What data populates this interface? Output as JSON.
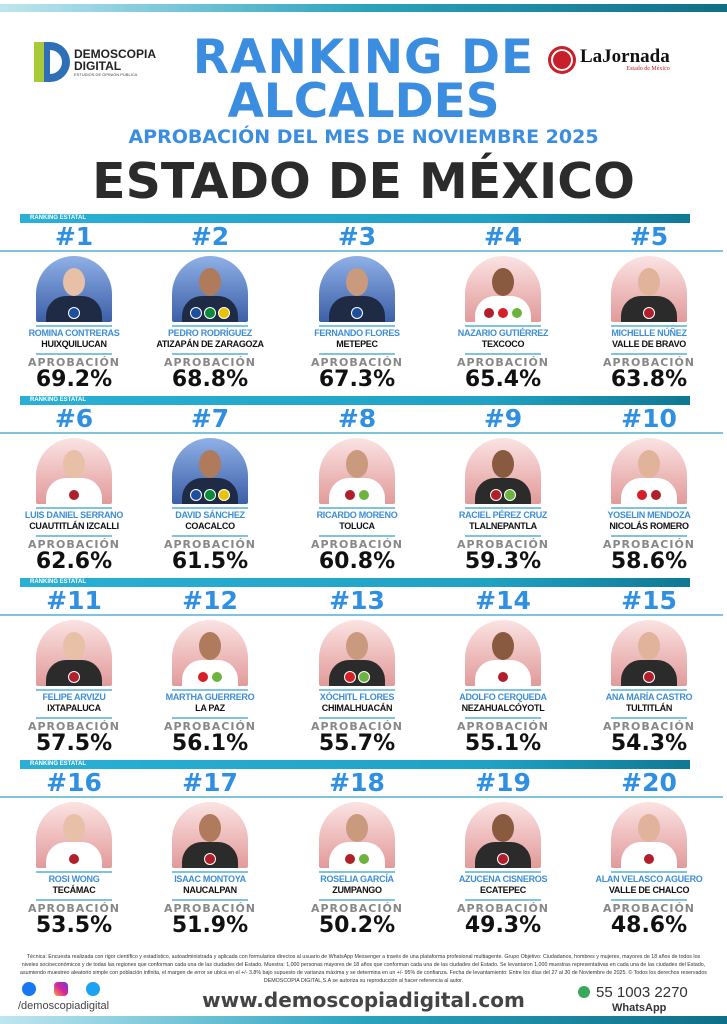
{
  "header": {
    "brand": {
      "line1": "DEMOSCOPIA",
      "line2": "DIGITAL",
      "tagline": "ESTUDIOS DE OPINIÓN PÚBLICA"
    },
    "partner": {
      "name": "LaJornada",
      "subtitle": "Estado de México"
    },
    "title_line1": "RANKING DE",
    "title_line2": "ALCALDES",
    "subtitle": "APROBACIÓN DEL MES DE NOVIEMBRE 2025",
    "state": "ESTADO DE MÉXICO"
  },
  "section_label": "RANKING ESTATAL",
  "approval_label": "APROBACIÓN",
  "colors": {
    "accent": "#3b8de0",
    "bar": "#1fa2c4",
    "pan": "#1d4f9c",
    "pri": "#0a8a3a",
    "morena": "#b0202a",
    "pt": "#d61f26",
    "pvem": "#6cb33f",
    "yellow": "#e8c400"
  },
  "mayors": [
    {
      "rank": "#1",
      "name": "ROMINA CONTRERAS",
      "city": "HUIXQUILUCAN",
      "approval": "69.2%",
      "parties": [
        "pan"
      ]
    },
    {
      "rank": "#2",
      "name": "PEDRO RODRÍGUEZ",
      "city": "ATIZAPÁN DE ZARAGOZA",
      "approval": "68.8%",
      "parties": [
        "pan",
        "pri",
        "yellow"
      ]
    },
    {
      "rank": "#3",
      "name": "FERNANDO FLORES",
      "city": "METEPEC",
      "approval": "67.3%",
      "parties": [
        "pan"
      ]
    },
    {
      "rank": "#4",
      "name": "NAZARIO GUTIÉRREZ",
      "city": "TEXCOCO",
      "approval": "65.4%",
      "parties": [
        "morena",
        "pt",
        "pvem"
      ]
    },
    {
      "rank": "#5",
      "name": "MICHELLE NÚÑEZ",
      "city": "VALLE DE BRAVO",
      "approval": "63.8%",
      "parties": [
        "morena"
      ]
    },
    {
      "rank": "#6",
      "name": "LUIS DANIEL SERRANO",
      "city": "CUAUTITLÁN IZCALLI",
      "approval": "62.6%",
      "parties": [
        "morena"
      ]
    },
    {
      "rank": "#7",
      "name": "DAVID SÁNCHEZ",
      "city": "COACALCO",
      "approval": "61.5%",
      "parties": [
        "pan",
        "pri",
        "yellow"
      ]
    },
    {
      "rank": "#8",
      "name": "RICARDO MORENO",
      "city": "TOLUCA",
      "approval": "60.8%",
      "parties": [
        "morena",
        "pvem"
      ]
    },
    {
      "rank": "#9",
      "name": "RACIEL PÉREZ CRUZ",
      "city": "TLALNEPANTLA",
      "approval": "59.3%",
      "parties": [
        "morena",
        "pvem"
      ]
    },
    {
      "rank": "#10",
      "name": "YOSELIN MENDOZA",
      "city": "NICOLÁS ROMERO",
      "approval": "58.6%",
      "parties": [
        "pt",
        "morena"
      ]
    },
    {
      "rank": "#11",
      "name": "FELIPE ARVIZU",
      "city": "IXTAPALUCA",
      "approval": "57.5%",
      "parties": [
        "morena"
      ]
    },
    {
      "rank": "#12",
      "name": "MARTHA GUERRERO",
      "city": "LA PAZ",
      "approval": "56.1%",
      "parties": [
        "pt",
        "pvem"
      ]
    },
    {
      "rank": "#13",
      "name": "XÓCHITL FLORES",
      "city": "CHIMALHUACÁN",
      "approval": "55.7%",
      "parties": [
        "pt",
        "pvem"
      ]
    },
    {
      "rank": "#14",
      "name": "ADOLFO CERQUEDA",
      "city": "NEZAHUALCÓYOTL",
      "approval": "55.1%",
      "parties": [
        "morena"
      ]
    },
    {
      "rank": "#15",
      "name": "ANA MARÍA CASTRO",
      "city": "TULTITLÁN",
      "approval": "54.3%",
      "parties": [
        "morena"
      ]
    },
    {
      "rank": "#16",
      "name": "ROSI WONG",
      "city": "TECÁMAC",
      "approval": "53.5%",
      "parties": [
        "morena"
      ]
    },
    {
      "rank": "#17",
      "name": "ISAAC MONTOYA",
      "city": "NAUCALPAN",
      "approval": "51.9%",
      "parties": [
        "morena"
      ]
    },
    {
      "rank": "#18",
      "name": "ROSELIA GARCÍA",
      "city": "ZUMPANGO",
      "approval": "50.2%",
      "parties": [
        "morena",
        "pvem"
      ]
    },
    {
      "rank": "#19",
      "name": "AZUCENA CISNEROS",
      "city": "ECATEPEC",
      "approval": "49.3%",
      "parties": [
        "morena"
      ]
    },
    {
      "rank": "#20",
      "name": "ALAN VELASCO AGUERO",
      "city": "VALLE DE CHALCO",
      "approval": "48.6%",
      "parties": [
        "morena"
      ]
    }
  ],
  "footnote": "Técnica: Encuesta realizada con rigor científico y estadístico, autoadministrada y aplicada con formularios directos al usuario de WhatsApp Messenger a través de una plataforma profesional multiagente. Grupo Objetivo: Ciudadanos, hombres y mujeres, mayores de 18 años de todos los niveles socioeconómicos y de todas las regiones que conforman cada una de las ciudades del Estado. Muestra: 1,000 personas mayores de 18 años que conforman cada una de las ciudades del Estado. Se levantaron 1,000 muestras representativas en cada una de las ciudades del Estado, asumiendo muestreo aleatorio simple con población infinita, el margen de error se ubica en el +/- 3.8% bajo supuesto de varianza máxima y se determina en un +/- 95% de confianza. Fecha de levantamiento: Entre los días del 27 al 30 de Noviembre de 2025. © Todos los derechos reservados DEMOSCOPIA DIGITAL,S.A se autoriza su reproducción al hacer referencia al autor.",
  "footer": {
    "handle": "/demoscopiadigital",
    "website": "www.demoscopiadigital.com",
    "phone": "55 1003 2270",
    "phone_label": "WhatsApp",
    "social_icons": [
      "facebook-icon",
      "instagram-icon",
      "twitter-icon"
    ]
  }
}
